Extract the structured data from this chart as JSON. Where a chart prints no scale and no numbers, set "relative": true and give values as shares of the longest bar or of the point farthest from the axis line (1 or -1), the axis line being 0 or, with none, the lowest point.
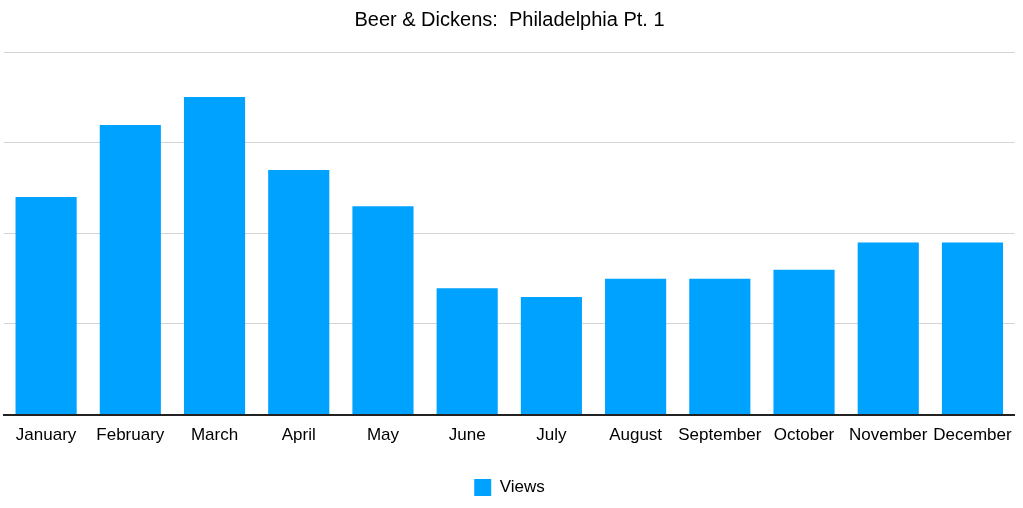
{
  "chart_data": {
    "type": "bar",
    "title": "Beer & Dickens:  Philadelphia Pt. 1",
    "categories": [
      "January",
      "February",
      "March",
      "April",
      "May",
      "June",
      "July",
      "August",
      "September",
      "October",
      "November",
      "December"
    ],
    "series": [
      {
        "name": "Views",
        "color": "#00a2ff",
        "values": [
          0.685,
          0.912,
          1,
          0.77,
          0.656,
          0.398,
          0.37,
          0.428,
          0.428,
          0.456,
          0.542,
          0.542
        ]
      }
    ],
    "relative": true,
    "grid": "y",
    "legend": "bottom"
  }
}
